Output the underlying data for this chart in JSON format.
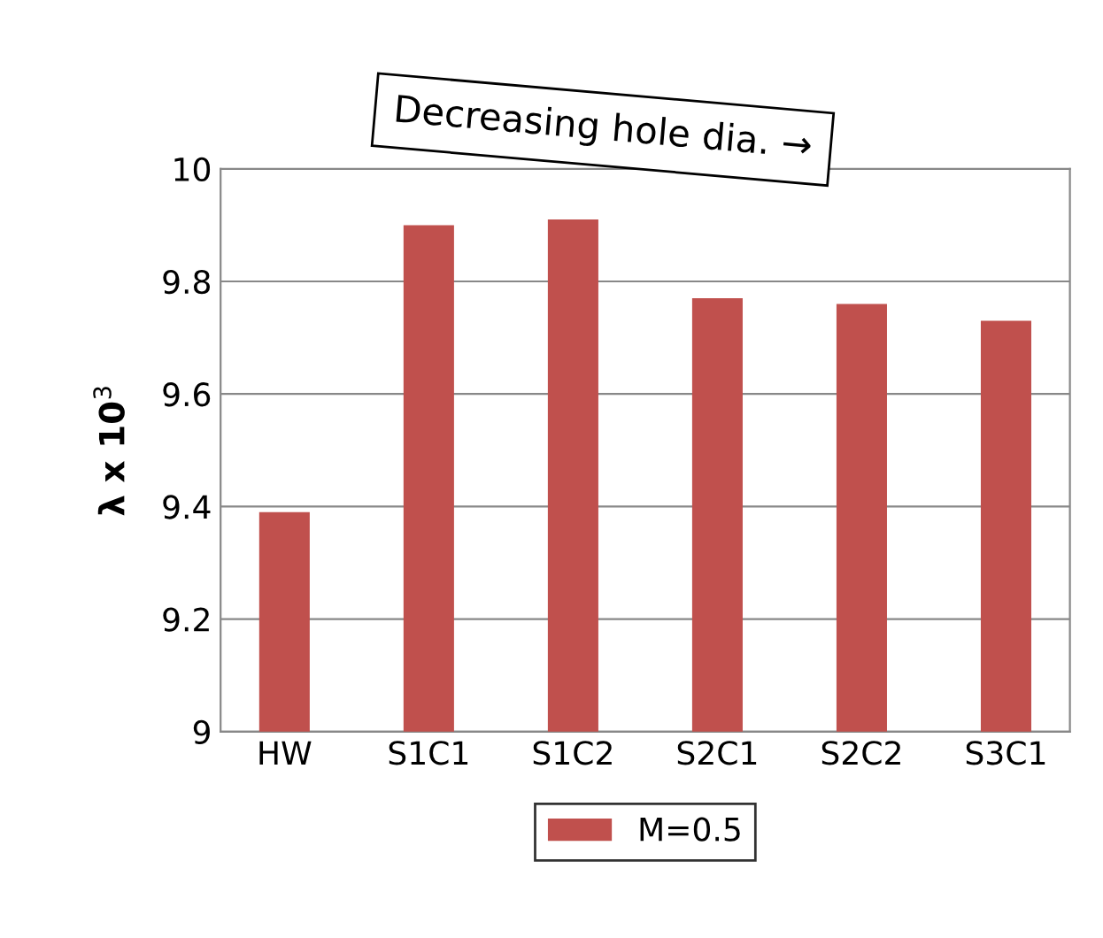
{
  "chart_data": {
    "type": "bar",
    "ylabel": "λ x 10$^{3}$",
    "categories": [
      "HW",
      "S1C1",
      "S1C2",
      "S2C1",
      "S2C2",
      "S3C1"
    ],
    "series": [
      {
        "name": "M=0.5",
        "color": "#c0504d",
        "values": [
          9.39,
          9.9,
          9.91,
          9.77,
          9.76,
          9.73
        ]
      }
    ],
    "ylim": [
      9,
      10
    ],
    "yticks": [
      9,
      9.2,
      9.4,
      9.6,
      9.8,
      10
    ],
    "grid": "y",
    "legend": "bottom",
    "annotations": [
      "Decreasing hole dia. →"
    ]
  }
}
